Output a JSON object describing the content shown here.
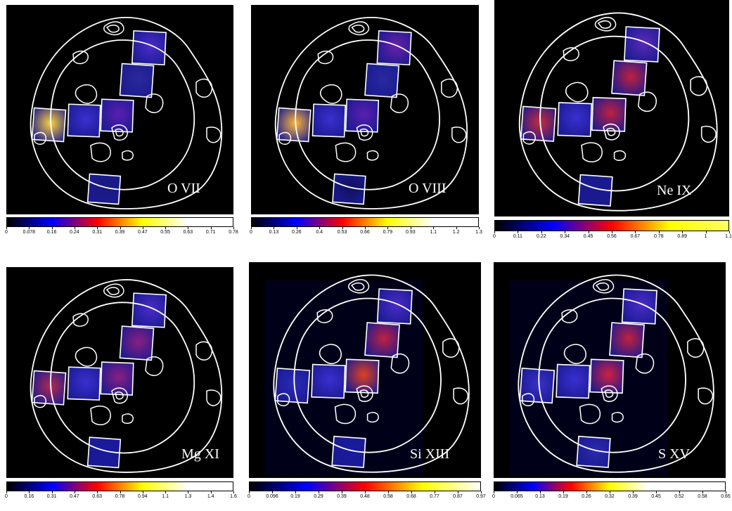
{
  "panels": [
    {
      "ion": "O VII",
      "colorbar_ticks": [
        "0",
        "0.078",
        "0.16",
        "0.24",
        "0.31",
        "0.39",
        "0.47",
        "0.55",
        "0.63",
        "0.71",
        "0.78"
      ],
      "colorbar_stops": [
        "#000000",
        "#0000ff",
        "#ff0000",
        "#ffff00",
        "#ffffff",
        "#ffffff"
      ],
      "box_colors": {
        "w": "#ffd23a",
        "c1": "#3a2fd0",
        "c2": "#5a1fb0",
        "ne": "#4a2cc8",
        "mid": "#2a2a9a",
        "s": "#1a1a80"
      },
      "bg": "#000000"
    },
    {
      "ion": "O VIII",
      "colorbar_ticks": [
        "0",
        "0.13",
        "0.26",
        "0.4",
        "0.53",
        "0.66",
        "0.79",
        "0.93",
        "1.1",
        "1.2",
        "1.3"
      ],
      "colorbar_stops": [
        "#000000",
        "#0000ff",
        "#ff0000",
        "#ffff00",
        "#ffffff",
        "#ffffff"
      ],
      "box_colors": {
        "w": "#ffb83a",
        "c1": "#3a2fd0",
        "c2": "#5a1fb0",
        "ne": "#6a20a8",
        "mid": "#2a2aa0",
        "s": "#101060"
      },
      "bg": "#000000"
    },
    {
      "ion": "Ne IX",
      "colorbar_ticks": [
        "0",
        "0.11",
        "0.22",
        "0.34",
        "0.45",
        "0.56",
        "0.67",
        "0.78",
        "0.89",
        "1",
        "1.1"
      ],
      "colorbar_stops": [
        "#000000",
        "#0000ff",
        "#ff0000",
        "#ffff00",
        "#ffff60"
      ],
      "box_colors": {
        "w": "#c82a3a",
        "c1": "#3a2fd0",
        "c2": "#c02040",
        "ne": "#5a2ab8",
        "mid": "#c02040",
        "s": "#1a1a90"
      },
      "bg": "#000000"
    },
    {
      "ion": "Mg XI",
      "colorbar_ticks": [
        "0",
        "0.16",
        "0.31",
        "0.47",
        "0.63",
        "0.78",
        "0.94",
        "1.1",
        "1.3",
        "1.4",
        "1.6"
      ],
      "colorbar_stops": [
        "#000000",
        "#0000ff",
        "#ff0000",
        "#ffff00",
        "#ffffff",
        "#ffffff"
      ],
      "box_colors": {
        "w": "#b02a50",
        "c1": "#3a2fd0",
        "c2": "#8a1f80",
        "ne": "#4a2cc8",
        "mid": "#8a1f80",
        "s": "#1a1aa0"
      },
      "bg": "#000000"
    },
    {
      "ion": "Si XIII",
      "colorbar_ticks": [
        "0",
        "0.096",
        "0.19",
        "0.29",
        "0.39",
        "0.48",
        "0.58",
        "0.68",
        "0.77",
        "0.87",
        "0.97"
      ],
      "colorbar_stops": [
        "#000000",
        "#0000ff",
        "#ff0000",
        "#ffff00",
        "#ffffff"
      ],
      "box_colors": {
        "w": "#2a2ab8",
        "c1": "#3a2fd0",
        "c2": "#e04020",
        "ne": "#4a2cc8",
        "mid": "#c02040",
        "s": "#1a1aa0"
      },
      "bg": "#000010"
    },
    {
      "ion": "S XV",
      "colorbar_ticks": [
        "0",
        "0.065",
        "0.13",
        "0.19",
        "0.26",
        "0.32",
        "0.39",
        "0.45",
        "0.52",
        "0.58",
        "0.65"
      ],
      "colorbar_stops": [
        "#000000",
        "#0000ff",
        "#ff0000",
        "#ffff00",
        "#ffffff",
        "#ffffff",
        "#ffffff"
      ],
      "box_colors": {
        "w": "#3a30c8",
        "c1": "#3a2fd0",
        "c2": "#d02040",
        "ne": "#4a2cc8",
        "mid": "#c02040",
        "s": "#2a2ab0"
      },
      "bg": "#000010"
    }
  ]
}
